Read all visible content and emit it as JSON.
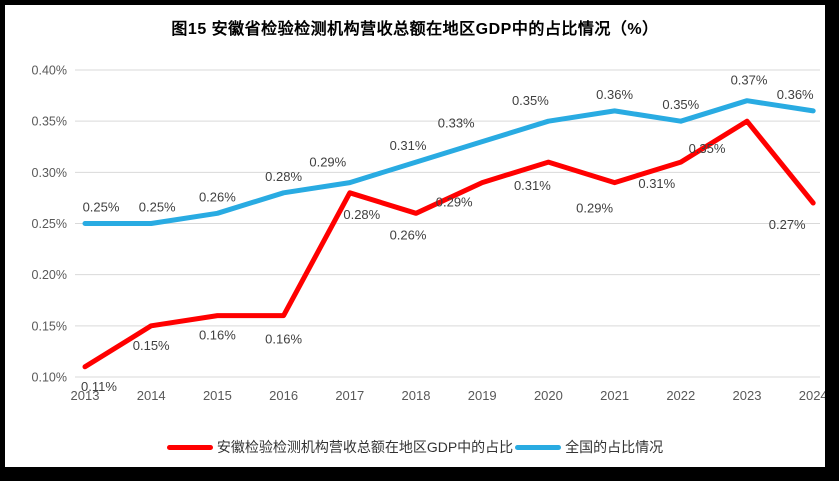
{
  "chart_data": {
    "type": "line",
    "title": "图15 安徽省检验检测机构营收总额在地区GDP中的占比情况（%）",
    "categories": [
      "2013",
      "2014",
      "2015",
      "2016",
      "2017",
      "2018",
      "2019",
      "2020",
      "2021",
      "2022",
      "2023",
      "2024"
    ],
    "series": [
      {
        "name": "安徽检验检测机构营收总额在地区GDP中的占比",
        "color": "#FF0000",
        "values": [
          0.11,
          0.15,
          0.16,
          0.16,
          0.28,
          0.26,
          0.29,
          0.31,
          0.29,
          0.31,
          0.35,
          0.27
        ],
        "labels": [
          "0.11%",
          "0.15%",
          "0.16%",
          "0.16%",
          "0.28%",
          "0.26%",
          "0.29%",
          "0.31%",
          "0.29%",
          "0.31%",
          "0.35%",
          "0.27%"
        ]
      },
      {
        "name": "全国的占比情况",
        "color": "#29ABE2",
        "values": [
          0.25,
          0.25,
          0.26,
          0.28,
          0.29,
          0.31,
          0.33,
          0.35,
          0.36,
          0.35,
          0.37,
          0.36
        ],
        "labels": [
          "0.25%",
          "0.25%",
          "0.26%",
          "0.28%",
          "0.29%",
          "0.31%",
          "0.33%",
          "0.35%",
          "0.36%",
          "0.35%",
          "0.37%",
          "0.36%"
        ]
      }
    ],
    "y_ticks": [
      "0.40%",
      "0.35%",
      "0.30%",
      "0.25%",
      "0.20%",
      "0.15%",
      "0.10%"
    ],
    "ylim": [
      0.1,
      0.4
    ],
    "xlabel": "",
    "ylabel": "",
    "grid": true,
    "legend_position": "bottom",
    "colors": {
      "grid": "#D9D9D9",
      "axis_text": "#595959",
      "data_label": "#404040",
      "title": "#000000",
      "background": "#FFFFFF",
      "border": "#000000"
    }
  }
}
